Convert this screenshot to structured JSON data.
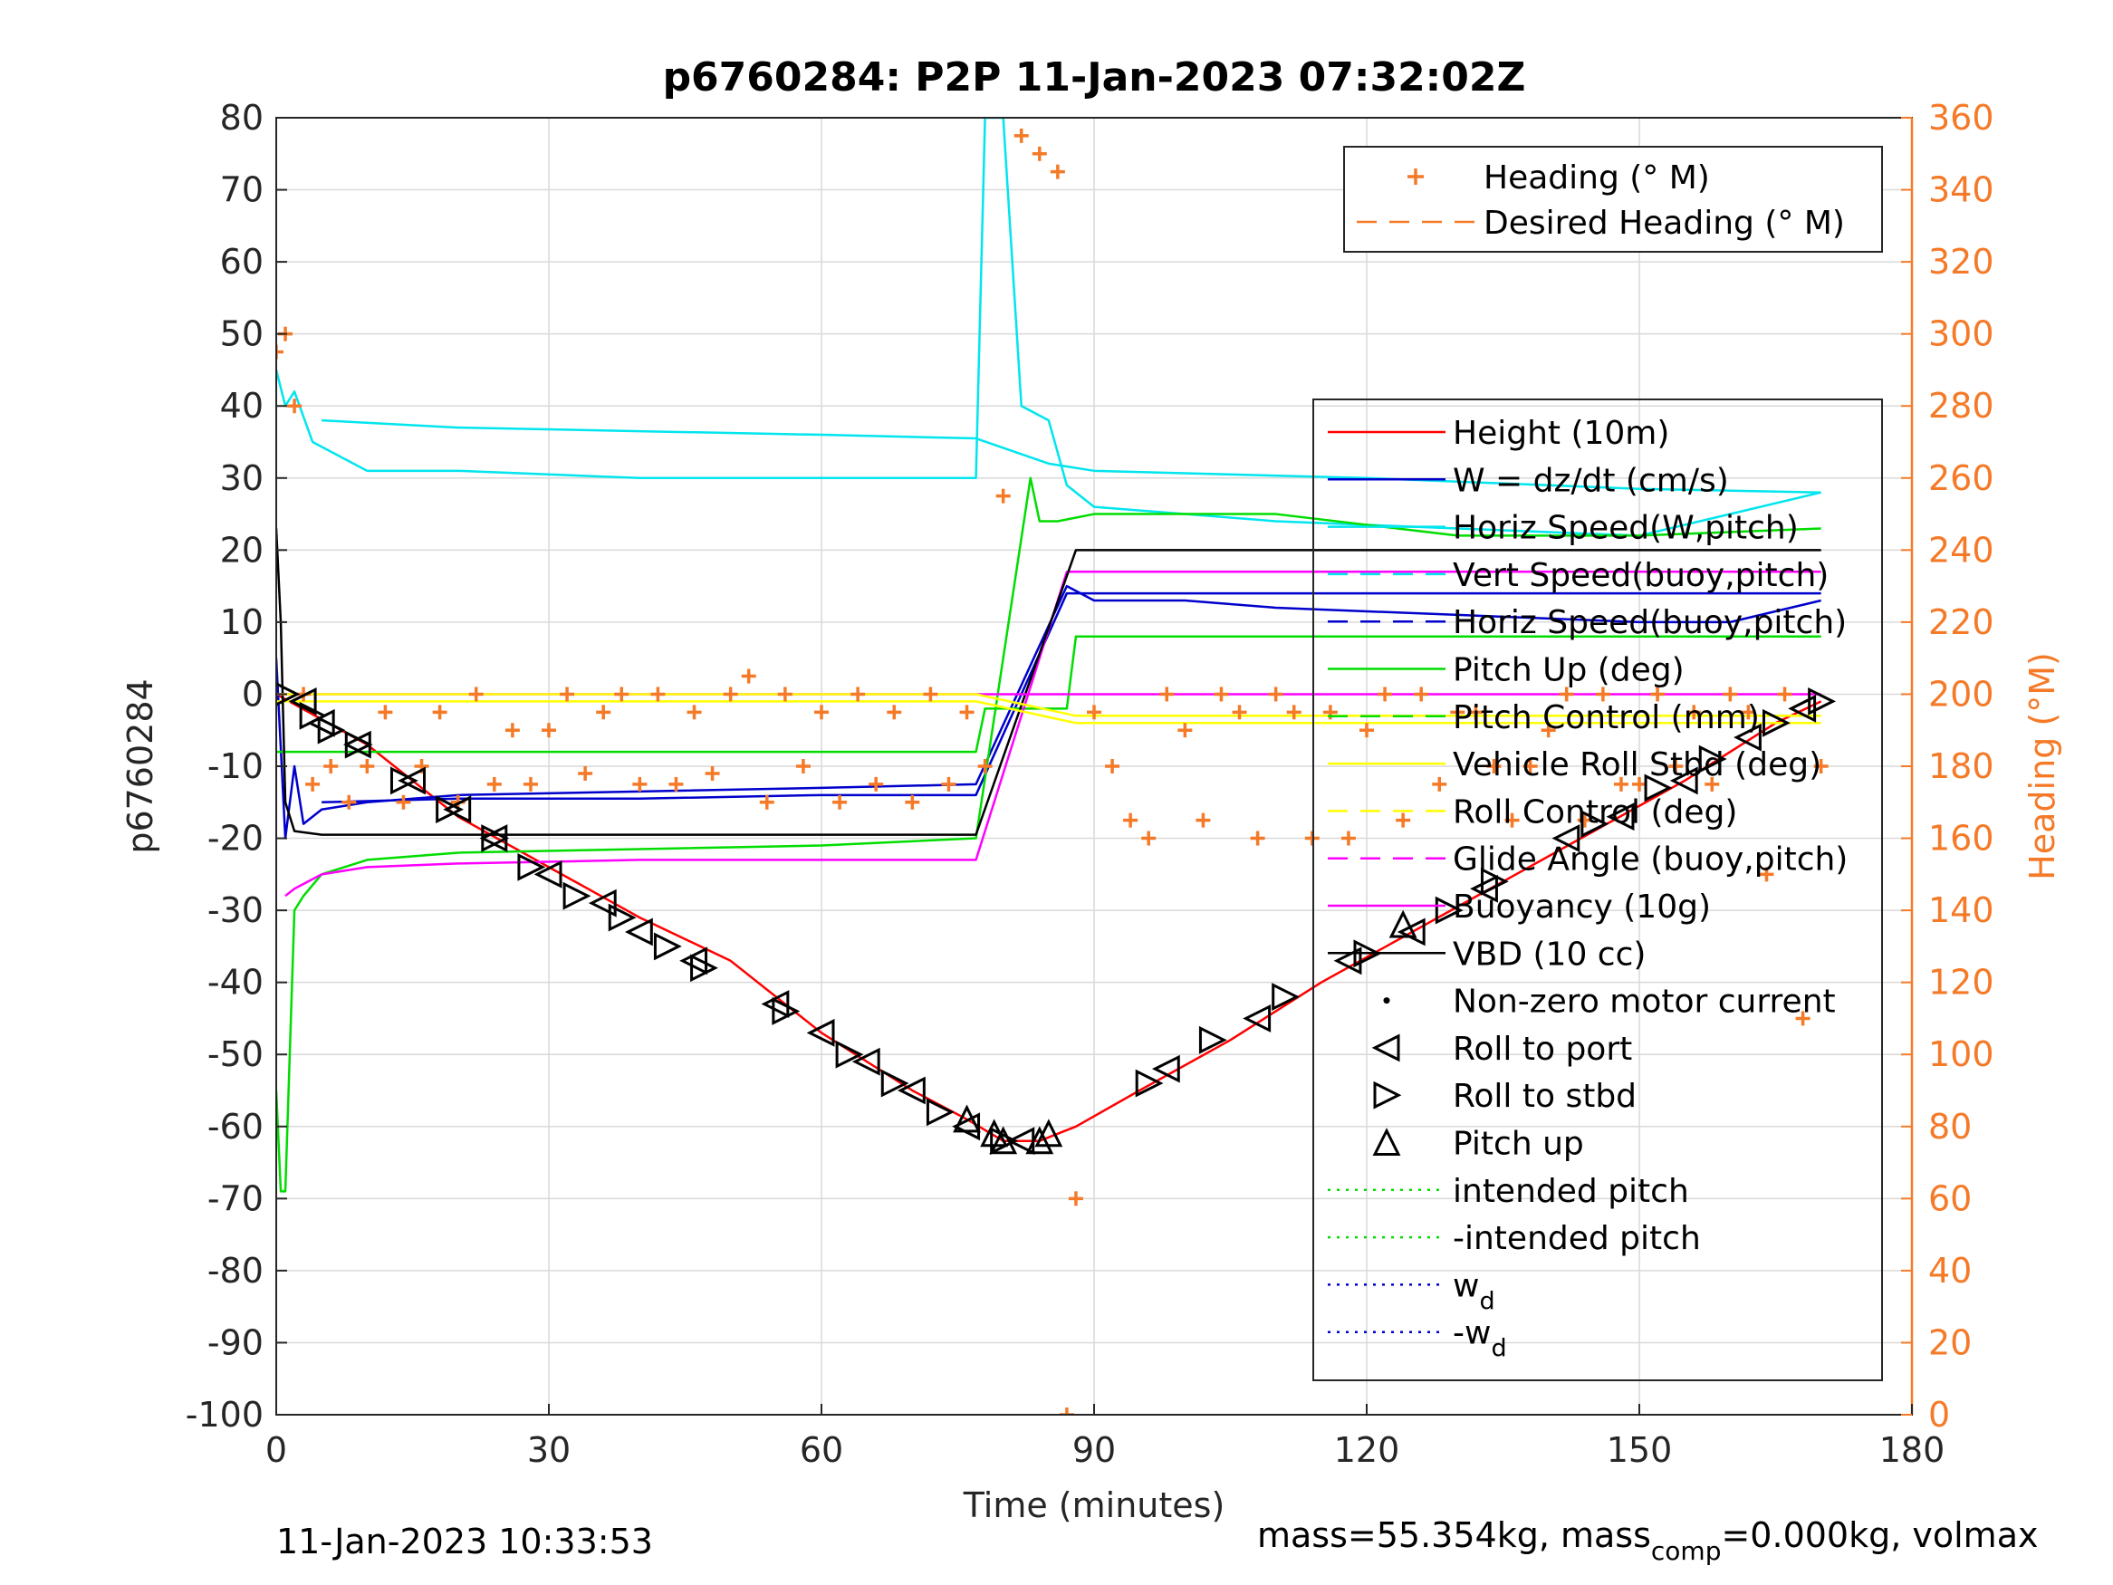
{
  "chart_data": {
    "type": "line",
    "title": "p6760284: P2P 11-Jan-2023 07:32:02Z",
    "xlabel": "Time (minutes)",
    "ylabel": "p6760284",
    "y2label": "Heading (°M)",
    "xlim": [
      0,
      180
    ],
    "ylim": [
      -100,
      80
    ],
    "y2lim": [
      0,
      360
    ],
    "xticks": [
      0,
      30,
      60,
      90,
      120,
      150,
      180
    ],
    "yticks": [
      -100,
      -90,
      -80,
      -70,
      -60,
      -50,
      -40,
      -30,
      -20,
      -10,
      0,
      10,
      20,
      30,
      40,
      50,
      60,
      70,
      80
    ],
    "y2ticks": [
      0,
      20,
      40,
      60,
      80,
      100,
      120,
      140,
      160,
      180,
      200,
      220,
      240,
      260,
      280,
      300,
      320,
      340,
      360
    ],
    "grid": true,
    "footer_left": "11-Jan-2023 10:33:53",
    "footer_right": "mass=55.354kg, mass",
    "footer_right_sub": "comp",
    "footer_right_tail": "=0.000kg, volmax",
    "legend_top": [
      {
        "label": "Heading (° M)",
        "color": "#f57a28",
        "style": "plus"
      },
      {
        "label": "Desired Heading (° M)",
        "color": "#f57a28",
        "style": "dash"
      }
    ],
    "legend_main": [
      {
        "label": "Height (10m)",
        "color": "#ff0000",
        "style": "line"
      },
      {
        "label": "W = dz/dt (cm/s)",
        "color": "#0000cc",
        "style": "line"
      },
      {
        "label": "Horiz Speed(W,pitch)",
        "color": "#00e5ee",
        "style": "line"
      },
      {
        "label": "Vert Speed(buoy,pitch)",
        "color": "#00e5ee",
        "style": "dash"
      },
      {
        "label": "Horiz Speed(buoy,pitch)",
        "color": "#0000cc",
        "style": "dash"
      },
      {
        "label": "Pitch Up (deg)",
        "color": "#00dd00",
        "style": "line"
      },
      {
        "label": "Pitch Control (mm)",
        "color": "#00dd00",
        "style": "dash"
      },
      {
        "label": "Vehicle Roll Stbd (deg)",
        "color": "#ffff00",
        "style": "line"
      },
      {
        "label": "Roll Control (deg)",
        "color": "#ffff00",
        "style": "dash"
      },
      {
        "label": "Glide Angle (buoy,pitch)",
        "color": "#ff00ff",
        "style": "dash"
      },
      {
        "label": "Buoyancy (10g)",
        "color": "#ff00ff",
        "style": "line"
      },
      {
        "label": "VBD (10 cc)",
        "color": "#000000",
        "style": "line"
      },
      {
        "label": "Non-zero motor current",
        "color": "#000000",
        "style": "dot"
      },
      {
        "label": "Roll to port",
        "color": "#000000",
        "style": "tri-left"
      },
      {
        "label": "Roll to stbd",
        "color": "#000000",
        "style": "tri-right"
      },
      {
        "label": "Pitch up",
        "color": "#000000",
        "style": "tri-up"
      },
      {
        "label": "intended pitch",
        "color": "#00dd00",
        "style": "dotted"
      },
      {
        "label": "-intended pitch",
        "color": "#00dd00",
        "style": "dotted"
      },
      {
        "label": "w",
        "sub": "d",
        "color": "#0000cc",
        "style": "dotted"
      },
      {
        "label": "-w",
        "sub": "d",
        "color": "#0000cc",
        "style": "dotted"
      }
    ],
    "series": [
      {
        "name": "Height (10m)",
        "color": "#ff0000",
        "axis": "left",
        "x": [
          0,
          10,
          20,
          30,
          40,
          50,
          60,
          70,
          76,
          80,
          84,
          88,
          95,
          105,
          115,
          125,
          135,
          145,
          155,
          165,
          170
        ],
        "y": [
          0,
          -7,
          -17,
          -24,
          -31,
          -37,
          -47,
          -55,
          -59,
          -62,
          -62,
          -60,
          -55,
          -48,
          -40,
          -33,
          -26,
          -19,
          -12,
          -4,
          -1
        ]
      },
      {
        "name": "W = dz/dt (cm/s)",
        "color": "#0000cc",
        "axis": "left",
        "x": [
          0,
          1,
          2,
          3,
          5,
          10,
          20,
          40,
          60,
          77,
          87,
          90,
          100,
          110,
          120,
          130,
          140,
          150,
          160,
          170
        ],
        "y": [
          5,
          -20,
          -10,
          -18,
          -16,
          -15,
          -14,
          -13.5,
          -13,
          -12.5,
          15,
          13,
          13,
          12,
          11.5,
          11,
          10.5,
          10,
          10,
          13
        ]
      },
      {
        "name": "Horiz Speed(W,pitch)",
        "color": "#00e5ee",
        "axis": "left",
        "x": [
          0,
          1,
          2,
          4,
          10,
          20,
          40,
          60,
          77,
          78,
          80,
          81,
          82,
          85,
          87,
          90,
          110,
          130,
          150,
          170
        ],
        "y": [
          45,
          40,
          42,
          35,
          31,
          31,
          30,
          30,
          30,
          80,
          80,
          60,
          40,
          38,
          29,
          26,
          24,
          23,
          22,
          28
        ]
      },
      {
        "name": "Vert Speed(buoy,pitch)",
        "color": "#00e5ee",
        "axis": "left",
        "x": [
          5,
          20,
          40,
          60,
          77,
          85,
          90,
          120,
          150,
          170
        ],
        "y": [
          38,
          37,
          36.5,
          36,
          35.5,
          32,
          31,
          30,
          28.5,
          28
        ]
      },
      {
        "name": "Horiz Speed(buoy,pitch)",
        "color": "#0000cc",
        "axis": "left",
        "x": [
          5,
          20,
          40,
          60,
          77,
          87,
          110,
          140,
          170
        ],
        "y": [
          -15,
          -14.5,
          -14.5,
          -14,
          -14,
          14,
          14,
          14,
          14
        ]
      },
      {
        "name": "Pitch Up (deg)",
        "color": "#00dd00",
        "axis": "left",
        "x": [
          0,
          0.5,
          1,
          2,
          3,
          5,
          10,
          20,
          40,
          60,
          77,
          83,
          84,
          86,
          90,
          110,
          130,
          150,
          170
        ],
        "y": [
          -55,
          -69,
          -69,
          -30,
          -28,
          -25,
          -23,
          -22,
          -21.5,
          -21,
          -20,
          30,
          24,
          24,
          25,
          25,
          22,
          22,
          23
        ]
      },
      {
        "name": "Pitch Control (mm)",
        "color": "#00dd00",
        "axis": "left",
        "x": [
          0,
          77,
          78,
          87,
          88,
          170
        ],
        "y": [
          -8,
          -8,
          -2,
          -2,
          8,
          8
        ]
      },
      {
        "name": "Buoyancy (10g)",
        "color": "#ff00ff",
        "axis": "left",
        "x": [
          1,
          2,
          5,
          10,
          20,
          40,
          60,
          77,
          87,
          110,
          140,
          170
        ],
        "y": [
          -28,
          -27,
          -25,
          -24,
          -23.5,
          -23,
          -23,
          -23,
          17,
          17,
          17,
          17
        ]
      },
      {
        "name": "VBD (10 cc)",
        "color": "#000000",
        "axis": "left",
        "x": [
          0,
          0.5,
          1,
          2,
          5,
          20,
          40,
          60,
          77,
          88,
          110,
          140,
          170
        ],
        "y": [
          23,
          10,
          -15,
          -19,
          -19.5,
          -19.5,
          -19.5,
          -19.5,
          -19.5,
          20,
          20,
          20,
          20
        ]
      },
      {
        "name": "Glide Angle (buoy,pitch)",
        "color": "#ff00ff",
        "axis": "left",
        "x": [
          0,
          170
        ],
        "y": [
          0,
          0
        ]
      },
      {
        "name": "Roll Control (deg)",
        "color": "#ffff00",
        "axis": "left",
        "x": [
          0,
          77,
          88,
          170
        ],
        "y": [
          0,
          0,
          -3,
          -3
        ]
      },
      {
        "name": "Vehicle Roll Stbd (deg)",
        "color": "#ffff00",
        "axis": "left",
        "x": [
          0,
          5,
          20,
          40,
          60,
          77,
          88,
          110,
          140,
          170
        ],
        "y": [
          -1,
          -1,
          -1,
          -1,
          -1,
          -1,
          -4,
          -4,
          -4,
          -4
        ]
      },
      {
        "name": "Heading (° M)",
        "color": "#f57a28",
        "axis": "right",
        "x": [
          0,
          1,
          2,
          3,
          4,
          6,
          8,
          10,
          12,
          14,
          16,
          18,
          20,
          22,
          24,
          26,
          28,
          30,
          32,
          34,
          36,
          38,
          40,
          42,
          44,
          46,
          48,
          50,
          52,
          54,
          56,
          58,
          60,
          62,
          64,
          66,
          68,
          70,
          72,
          74,
          76,
          78,
          80,
          82,
          84,
          86,
          87,
          88,
          90,
          92,
          94,
          96,
          98,
          100,
          102,
          104,
          106,
          108,
          110,
          112,
          114,
          116,
          118,
          120,
          122,
          124,
          126,
          128,
          130,
          132,
          134,
          136,
          138,
          140,
          142,
          144,
          146,
          148,
          150,
          152,
          154,
          156,
          158,
          160,
          162,
          164,
          166,
          168,
          170
        ],
        "y": [
          295,
          300,
          280,
          200,
          175,
          180,
          170,
          180,
          195,
          170,
          180,
          195,
          170,
          200,
          175,
          190,
          175,
          190,
          200,
          178,
          195,
          200,
          175,
          200,
          175,
          195,
          178,
          200,
          205,
          170,
          200,
          180,
          195,
          170,
          200,
          175,
          195,
          170,
          200,
          175,
          195,
          180,
          255,
          355,
          350,
          345,
          0,
          60,
          195,
          180,
          165,
          160,
          200,
          190,
          165,
          200,
          195,
          160,
          200,
          195,
          160,
          195,
          160,
          190,
          200,
          165,
          200,
          175,
          195,
          195,
          180,
          165,
          180,
          190,
          200,
          165,
          200,
          175,
          175,
          200,
          180,
          195,
          175,
          200,
          195,
          150,
          200,
          110,
          180
        ]
      }
    ],
    "markers": {
      "roll_port": {
        "x": [
          3,
          5,
          9,
          15,
          20,
          24,
          30,
          36,
          40,
          46,
          55,
          60,
          65,
          70,
          76,
          82,
          98,
          108,
          118,
          125,
          133,
          142,
          148,
          155,
          162,
          168
        ],
        "y": [
          -1,
          -4,
          -7,
          -12,
          -16,
          -20,
          -25,
          -29,
          -33,
          -37,
          -43,
          -47,
          -51,
          -55,
          -60,
          -62,
          -52,
          -45,
          -37,
          -33,
          -27,
          -20,
          -17,
          -12,
          -6,
          -2
        ]
      },
      "roll_stbd": {
        "x": [
          1,
          4,
          6,
          9,
          14,
          19,
          24,
          28,
          33,
          38,
          43,
          47,
          56,
          63,
          68,
          73,
          80,
          96,
          103,
          111,
          120,
          129,
          134,
          145,
          152,
          158,
          165,
          170
        ],
        "y": [
          0,
          -3,
          -5,
          -7,
          -12,
          -16,
          -20,
          -24,
          -28,
          -31,
          -35,
          -38,
          -44,
          -50,
          -54,
          -58,
          -62,
          -54,
          -48,
          -42,
          -36,
          -30,
          -26,
          -18,
          -13,
          -9,
          -4,
          -1
        ]
      },
      "pitch_up": {
        "x": [
          76,
          79,
          80,
          84,
          85,
          124
        ],
        "y": [
          -59,
          -61,
          -62,
          -62,
          -61,
          -32
        ]
      }
    }
  }
}
